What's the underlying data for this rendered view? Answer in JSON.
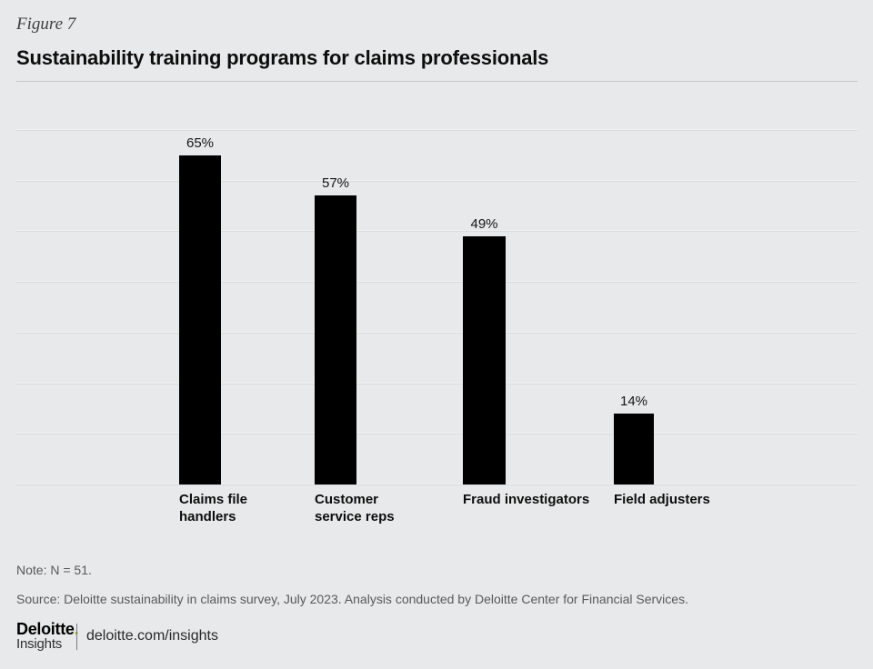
{
  "header": {
    "figure_label": "Figure 7",
    "title": "Sustainability training programs for claims professionals"
  },
  "chart_data": {
    "type": "bar",
    "title": "Sustainability training programs for claims professionals",
    "categories": [
      "Claims file handlers",
      "Customer service reps",
      "Fraud investigators",
      "Field adjusters"
    ],
    "categories_wrapped": [
      "Claims file\nhandlers",
      "Customer\nservice reps",
      "Fraud investigators",
      "Field adjusters"
    ],
    "values": [
      65,
      57,
      49,
      14
    ],
    "value_labels": [
      "65%",
      "57%",
      "49%",
      "14%"
    ],
    "unit": "%",
    "xlabel": "",
    "ylabel": "",
    "ylim": [
      0,
      70
    ],
    "gridline_interval": 10,
    "grid": true,
    "legend": false,
    "axis_tick_labels_visible": false,
    "bar_color": "#000000"
  },
  "footnotes": {
    "note": "Note: N = 51.",
    "source": "Source: Deloitte sustainability in claims survey, July 2023. Analysis conducted by Deloitte Center for Financial Services."
  },
  "footer": {
    "brand": "Deloitte",
    "brand_dot": ".",
    "brand_sub": "Insights",
    "url": "deloitte.com/insights",
    "brand_green": "#86bc25"
  },
  "colors": {
    "background": "#e8e9ea",
    "bar": "#000000",
    "gridline": "#d9dadc",
    "accent_green": "#86bc25",
    "muted_text": "#58595b"
  }
}
